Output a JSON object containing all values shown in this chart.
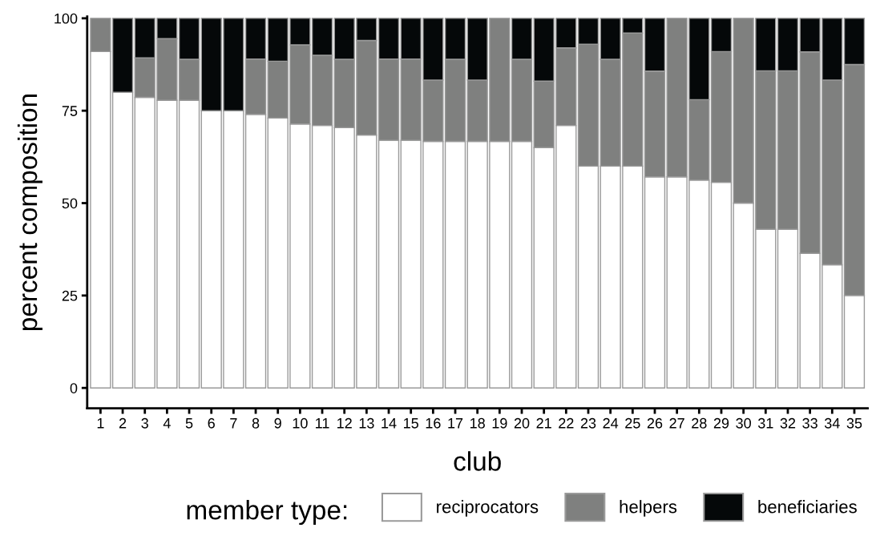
{
  "chart_data": {
    "type": "bar",
    "stacked": true,
    "xlabel": "club",
    "ylabel": "percent composition",
    "legend_title": "member type:",
    "legend": "bottom",
    "categories": [
      "1",
      "2",
      "3",
      "4",
      "5",
      "6",
      "7",
      "8",
      "9",
      "10",
      "11",
      "12",
      "13",
      "14",
      "15",
      "16",
      "17",
      "18",
      "19",
      "20",
      "21",
      "22",
      "23",
      "24",
      "25",
      "26",
      "27",
      "28",
      "29",
      "30",
      "31",
      "32",
      "33",
      "34",
      "35"
    ],
    "ylim": [
      -5.5,
      100.5
    ],
    "yticks": [
      0,
      25,
      50,
      75,
      100
    ],
    "grid": false,
    "series": [
      {
        "name": "reciprocators",
        "color": "#ffffff",
        "values": [
          91,
          80,
          78.6,
          77.8,
          77.8,
          75,
          75,
          74,
          73,
          71.4,
          71,
          70.4,
          68.4,
          67,
          67,
          66.7,
          66.7,
          66.7,
          66.7,
          66.7,
          65,
          71,
          60,
          60,
          60,
          57.1,
          57.1,
          56.2,
          55.6,
          50,
          42.9,
          42.9,
          36.4,
          33.3,
          25
        ]
      },
      {
        "name": "helpers",
        "color": "#7f807f",
        "values": [
          9,
          0,
          10.7,
          16.7,
          11.1,
          0,
          0,
          15,
          15.4,
          21.4,
          19,
          18.5,
          25.6,
          22,
          22,
          16.6,
          22.2,
          16.6,
          33.3,
          22.2,
          18,
          21,
          33,
          28.9,
          36,
          28.6,
          42.9,
          21.8,
          35.4,
          50,
          42.9,
          42.9,
          54.5,
          50,
          62.5
        ]
      },
      {
        "name": "beneficiaries",
        "color": "#050809",
        "values": [
          0,
          20,
          10.7,
          5.5,
          11.1,
          25,
          25,
          11,
          11.6,
          7.2,
          10,
          11.1,
          6,
          11,
          11,
          16.7,
          11.1,
          16.7,
          0,
          11.1,
          17,
          8,
          7,
          11.1,
          4,
          14.3,
          0,
          22,
          9,
          0,
          14.2,
          14.2,
          9.1,
          16.7,
          12.5
        ]
      }
    ]
  }
}
